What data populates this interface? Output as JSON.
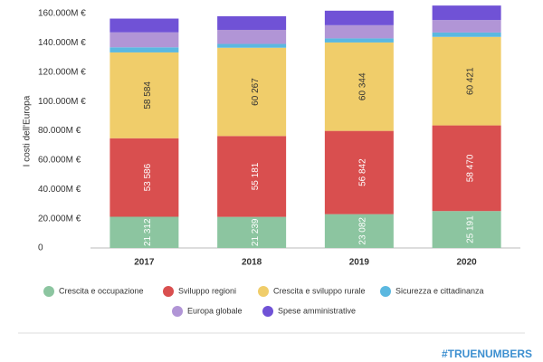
{
  "chart_data": {
    "type": "stacked-bar",
    "y_label": "I costi dell'Europa",
    "categories": [
      "2017",
      "2018",
      "2019",
      "2020"
    ],
    "series": [
      {
        "name": "Crescita e occupazione",
        "color": "#8cc5a0",
        "values": [
          21312,
          21239,
          23082,
          25191
        ],
        "value_labels": [
          "21 312",
          "21 239",
          "23 082",
          "25 191"
        ]
      },
      {
        "name": "Sviluppo regioni",
        "color": "#d94f4f",
        "values": [
          53586,
          55181,
          56842,
          58470
        ],
        "value_labels": [
          "53 586",
          "55 181",
          "56 842",
          "58 470"
        ]
      },
      {
        "name": "Crescita e sviluppo rurale",
        "color": "#f0cd6a",
        "values": [
          58584,
          60267,
          60344,
          60421
        ],
        "value_labels": [
          "58 584",
          "60 267",
          "60 344",
          "60 421"
        ]
      },
      {
        "name": "Sicurezza e cittadinanza",
        "color": "#5bb8e0",
        "values": [
          3500,
          2600,
          2800,
          3000
        ]
      },
      {
        "name": "Europa globale",
        "color": "#b195d6",
        "values": [
          10200,
          9600,
          9000,
          8500
        ]
      },
      {
        "name": "Spese amministrative",
        "color": "#7052d6",
        "values": [
          9400,
          9300,
          9900,
          9900
        ]
      }
    ],
    "ylim": [
      0,
      160000
    ],
    "yticks": [
      0,
      {
        "value": 20000,
        "label": "20.000M €"
      },
      {
        "value": 40000,
        "label": "40.000M €"
      },
      {
        "value": 60000,
        "label": "60.000M €"
      },
      {
        "value": 80000,
        "label": "80.000M €"
      },
      {
        "value": 100000,
        "label": "100.000M €"
      },
      {
        "value": 120000,
        "label": "120.000M €"
      },
      {
        "value": 140000,
        "label": "140.000M €"
      },
      {
        "value": 160000,
        "label": "160.000M €"
      }
    ],
    "watermark": "#TRUENUMBERS"
  }
}
